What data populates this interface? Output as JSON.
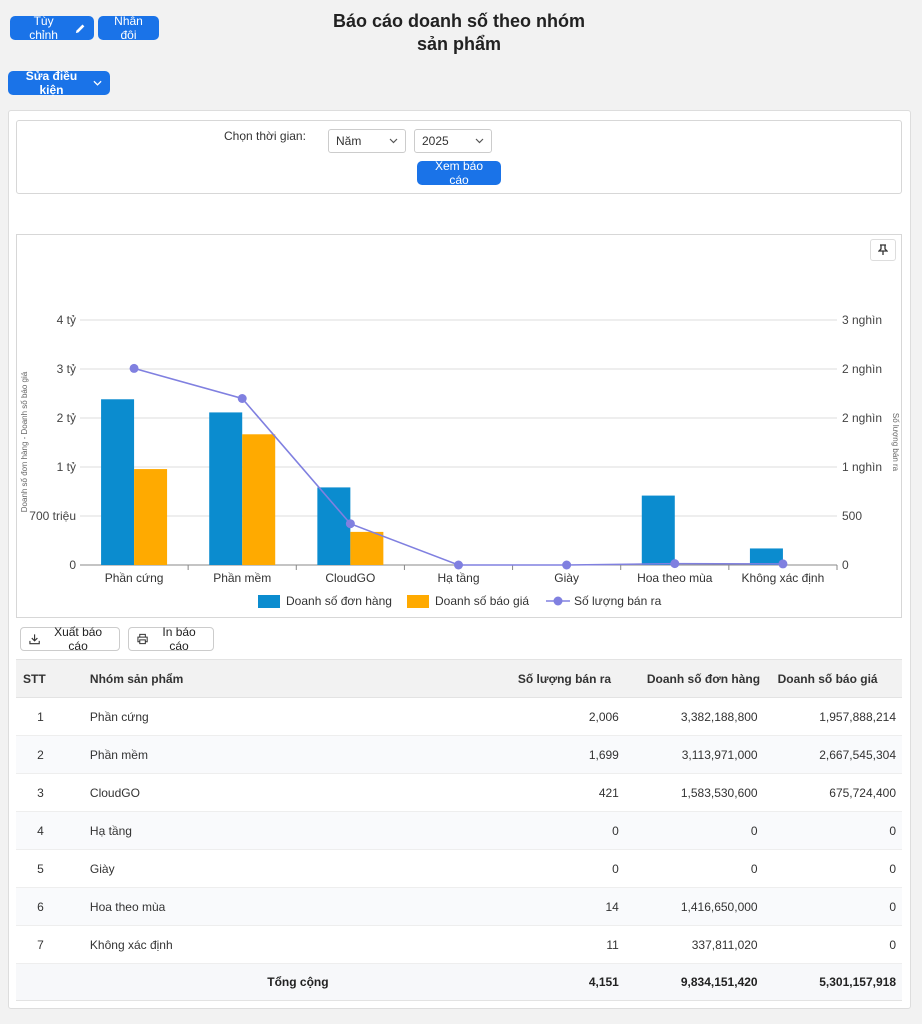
{
  "toolbar": {
    "customize_label": "Tùy chỉnh",
    "duplicate_label": "Nhân đôi",
    "edit_conditions_label": "Sửa điều kiện"
  },
  "page": {
    "title_line1": "Báo cáo doanh số theo nhóm",
    "title_line2": "sản phẩm"
  },
  "filter": {
    "label": "Chọn thời gian:",
    "period": "Năm",
    "year": "2025",
    "view_button": "Xem báo cáo"
  },
  "chart_data": {
    "type": "bar",
    "categories": [
      "Phần cứng",
      "Phần mềm",
      "CloudGO",
      "Hạ tầng",
      "Giày",
      "Hoa theo mùa",
      "Không xác định"
    ],
    "series": [
      {
        "name": "Doanh số đơn hàng",
        "type": "bar",
        "axis": "left",
        "color": "#0b8ccf",
        "values": [
          3382188800,
          3113971000,
          1583530600,
          0,
          0,
          1416650000,
          337811020
        ]
      },
      {
        "name": "Doanh số báo giá",
        "type": "bar",
        "axis": "left",
        "color": "#ffaa00",
        "values": [
          1957888214,
          2667545304,
          675724400,
          0,
          0,
          0,
          0
        ]
      },
      {
        "name": "Số lượng bán ra",
        "type": "line",
        "axis": "right",
        "color": "#8080e0",
        "values": [
          2006,
          1699,
          421,
          0,
          0,
          14,
          11
        ]
      }
    ],
    "left_axis": {
      "label": "Doanh số đơn hàng - Doanh số báo giá",
      "ticks": [
        "0",
        "700 triệu",
        "1 tỷ",
        "2 tỷ",
        "3 tỷ",
        "4 tỷ"
      ]
    },
    "right_axis": {
      "label": "Số lượng bán ra",
      "ticks": [
        "0",
        "500",
        "1 nghìn",
        "2 nghìn",
        "2 nghìn",
        "3 nghìn"
      ]
    },
    "legend_position": "bottom",
    "grid": true
  },
  "actions": {
    "export_label": "Xuất báo cáo",
    "print_label": "In báo cáo"
  },
  "table": {
    "headers": [
      "STT",
      "Nhóm sản phẩm",
      "Số lượng bán ra",
      "Doanh số đơn hàng",
      "Doanh số báo giá"
    ],
    "rows": [
      [
        "1",
        "Phần cứng",
        "2,006",
        "3,382,188,800",
        "1,957,888,214"
      ],
      [
        "2",
        "Phần mềm",
        "1,699",
        "3,113,971,000",
        "2,667,545,304"
      ],
      [
        "3",
        "CloudGO",
        "421",
        "1,583,530,600",
        "675,724,400"
      ],
      [
        "4",
        "Hạ tầng",
        "0",
        "0",
        "0"
      ],
      [
        "5",
        "Giày",
        "0",
        "0",
        "0"
      ],
      [
        "6",
        "Hoa theo mùa",
        "14",
        "1,416,650,000",
        "0"
      ],
      [
        "7",
        "Không xác định",
        "11",
        "337,811,020",
        "0"
      ]
    ],
    "total": {
      "label": "Tổng cộng",
      "quantity": "4,151",
      "orders": "9,834,151,420",
      "quotes": "5,301,157,918"
    }
  }
}
